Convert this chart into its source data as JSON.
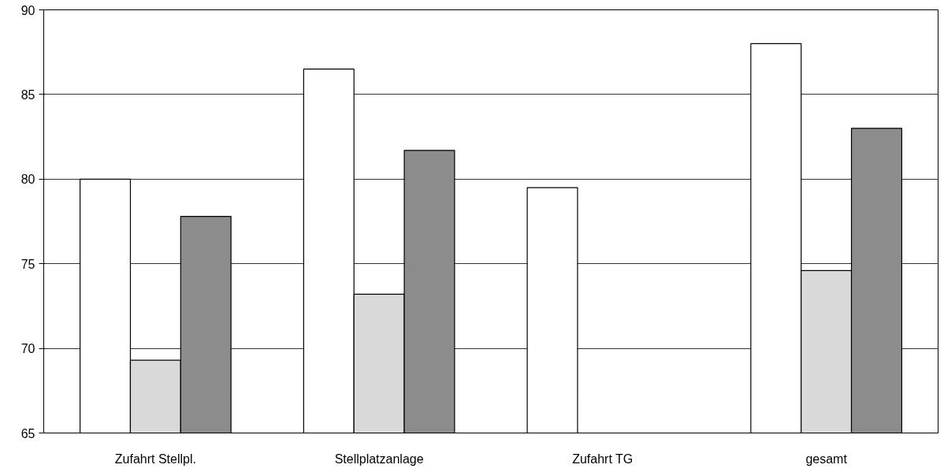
{
  "chart_data": {
    "type": "bar",
    "categories": [
      "Zufahrt Stellpl.",
      "Stellplatzanlage",
      "Zufahrt TG",
      "gesamt"
    ],
    "series": [
      {
        "color": "#ffffff",
        "values": [
          80.0,
          86.5,
          79.5,
          88.0
        ]
      },
      {
        "color": "#d9d9d9",
        "values": [
          69.3,
          73.2,
          null,
          74.6
        ]
      },
      {
        "color": "#8c8c8c",
        "values": [
          77.8,
          81.7,
          null,
          83.0
        ]
      }
    ],
    "ylim": [
      65,
      90
    ],
    "yticks": [
      65,
      70,
      75,
      80,
      85,
      90
    ],
    "grid": "y"
  }
}
